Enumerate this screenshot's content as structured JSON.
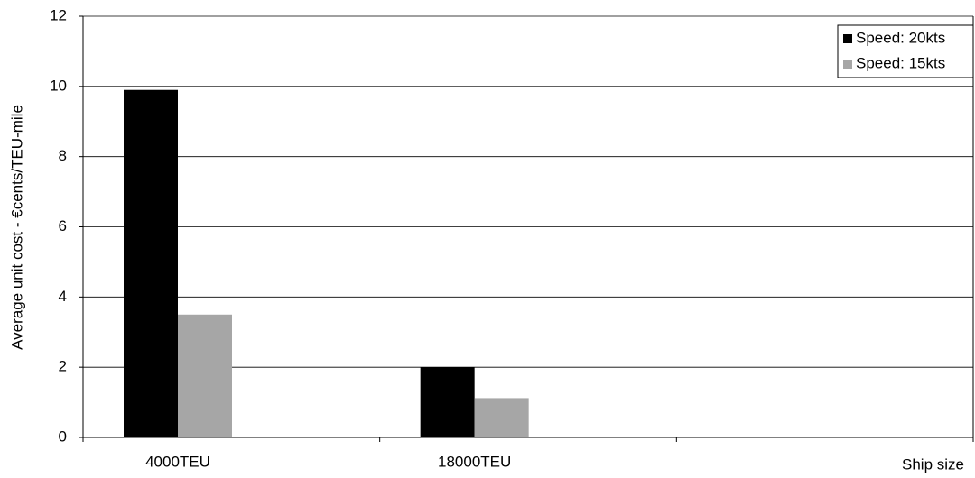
{
  "chart_data": {
    "type": "bar",
    "y_label": "Average unit  cost - €cents/TEU-mile",
    "x_label": "Ship size",
    "categories": [
      "4000TEU",
      "18000TEU",
      null
    ],
    "series": [
      {
        "name": "Speed: 20kts",
        "color": "#000000",
        "values": [
          9.9,
          2.0,
          null
        ]
      },
      {
        "name": "Speed: 15kts",
        "color": "#a6a6a6",
        "values": [
          3.5,
          1.12,
          null
        ]
      }
    ],
    "ylim": [
      0,
      12
    ],
    "yticks": [
      0,
      2,
      4,
      6,
      8,
      10,
      12
    ],
    "grid": true,
    "legend": "top-right"
  }
}
